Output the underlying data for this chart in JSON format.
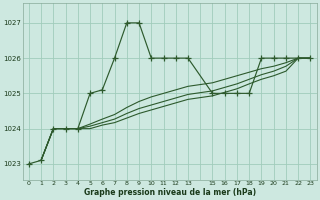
{
  "bg_color": "#cde8e0",
  "grid_color": "#a0ccbb",
  "line_color": "#2d5a2d",
  "title": "Graphe pression niveau de la mer (hPa)",
  "ylim": [
    1022.55,
    1027.55
  ],
  "xlim": [
    -0.5,
    23.5
  ],
  "yticks": [
    1023,
    1024,
    1025,
    1026,
    1027
  ],
  "figsize": [
    3.2,
    2.0
  ],
  "dpi": 100,
  "series_main_x": [
    0,
    1,
    2,
    3,
    4,
    5,
    6,
    7,
    8,
    9,
    10,
    11,
    12,
    13,
    15,
    16,
    17,
    18,
    19,
    20,
    21,
    22,
    23
  ],
  "series_main_y": [
    1023.0,
    1023.1,
    1024.0,
    1024.0,
    1024.0,
    1025.0,
    1025.1,
    1026.0,
    1027.0,
    1027.0,
    1026.0,
    1026.0,
    1026.0,
    1026.0,
    1025.0,
    1025.0,
    1025.0,
    1025.0,
    1026.0,
    1026.0,
    1026.0,
    1026.0,
    1026.0
  ],
  "trend_lines": [
    {
      "x": [
        1,
        2,
        3,
        4,
        5,
        6,
        7,
        8,
        9,
        10,
        11,
        12,
        13,
        15,
        16,
        17,
        18,
        19,
        20,
        21,
        22,
        23
      ],
      "y": [
        1023.1,
        1024.0,
        1024.0,
        1024.0,
        1024.13,
        1024.27,
        1024.4,
        1024.6,
        1024.77,
        1024.9,
        1025.0,
        1025.1,
        1025.2,
        1025.3,
        1025.4,
        1025.5,
        1025.6,
        1025.7,
        1025.77,
        1025.87,
        1026.0,
        1026.0
      ]
    },
    {
      "x": [
        1,
        2,
        3,
        4,
        5,
        6,
        7,
        8,
        9,
        10,
        11,
        12,
        13,
        15,
        16,
        17,
        18,
        19,
        20,
        21,
        22,
        23
      ],
      "y": [
        1023.1,
        1024.0,
        1024.0,
        1024.0,
        1024.07,
        1024.17,
        1024.27,
        1024.43,
        1024.57,
        1024.67,
        1024.77,
        1024.87,
        1024.97,
        1025.07,
        1025.17,
        1025.27,
        1025.4,
        1025.53,
        1025.63,
        1025.77,
        1026.0,
        1026.0
      ]
    },
    {
      "x": [
        1,
        2,
        3,
        4,
        5,
        6,
        7,
        8,
        9,
        10,
        11,
        12,
        13,
        15,
        16,
        17,
        18,
        19,
        20,
        21,
        22,
        23
      ],
      "y": [
        1023.1,
        1024.0,
        1024.0,
        1024.0,
        1024.0,
        1024.1,
        1024.17,
        1024.3,
        1024.43,
        1024.53,
        1024.63,
        1024.73,
        1024.83,
        1024.93,
        1025.03,
        1025.13,
        1025.27,
        1025.4,
        1025.5,
        1025.63,
        1026.0,
        1026.0
      ]
    }
  ]
}
